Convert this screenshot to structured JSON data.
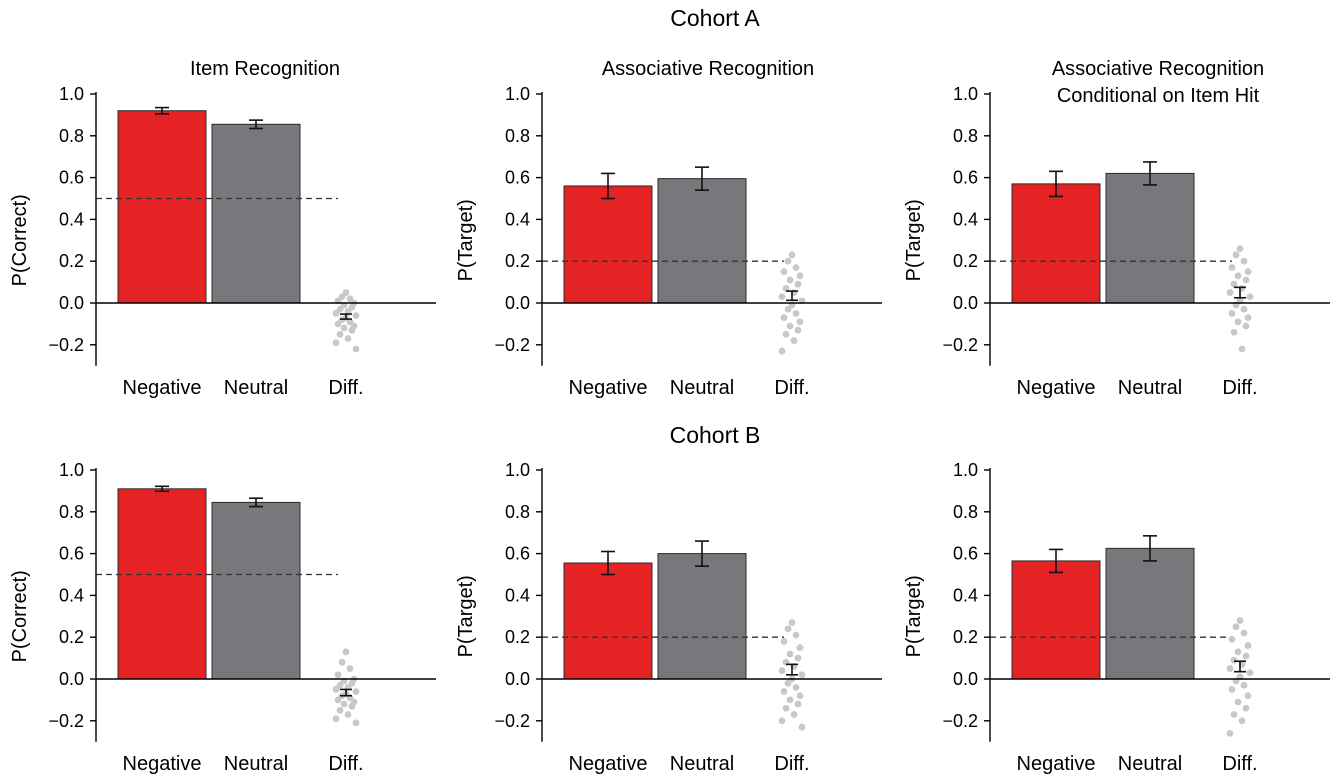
{
  "cohorts": [
    {
      "label": "Cohort A"
    },
    {
      "label": "Cohort B"
    }
  ],
  "colors": {
    "negative": "#e52325",
    "neutral": "#77787b",
    "dots": "#c8c8c8",
    "ref_line": "#333333"
  },
  "chart_data": [
    {
      "type": "bar",
      "cohort": "Cohort A",
      "title": "Item Recognition",
      "subtitle": "",
      "ylabel": "P(Correct)",
      "ylim": [
        -0.3,
        1.0
      ],
      "yticks": [
        "−0.2",
        "0.0",
        "0.2",
        "0.4",
        "0.6",
        "0.8",
        "1.0"
      ],
      "categories": [
        "Negative",
        "Neutral",
        "Diff."
      ],
      "values": [
        0.92,
        0.855,
        -0.065
      ],
      "errors": [
        0.015,
        0.02,
        0.012
      ],
      "chance": 0.5,
      "diff_points": [
        0.05,
        0.03,
        0.02,
        0.01,
        0.0,
        -0.01,
        -0.02,
        -0.03,
        -0.04,
        -0.05,
        -0.06,
        -0.07,
        -0.08,
        -0.09,
        -0.1,
        -0.11,
        -0.12,
        -0.13,
        -0.15,
        -0.17,
        -0.19,
        -0.22
      ]
    },
    {
      "type": "bar",
      "cohort": "Cohort A",
      "title": "Associative Recognition",
      "subtitle": "",
      "ylabel": "P(Target)",
      "ylim": [
        -0.3,
        1.0
      ],
      "yticks": [
        "−0.2",
        "0.0",
        "0.2",
        "0.4",
        "0.6",
        "0.8",
        "1.0"
      ],
      "categories": [
        "Negative",
        "Neutral",
        "Diff."
      ],
      "values": [
        0.56,
        0.595,
        0.035
      ],
      "errors": [
        0.06,
        0.055,
        0.022
      ],
      "chance": 0.2,
      "diff_points": [
        0.23,
        0.2,
        0.17,
        0.15,
        0.13,
        0.11,
        0.09,
        0.07,
        0.05,
        0.03,
        0.01,
        -0.01,
        -0.03,
        -0.05,
        -0.07,
        -0.09,
        -0.11,
        -0.13,
        -0.15,
        -0.18,
        -0.23
      ]
    },
    {
      "type": "bar",
      "cohort": "Cohort A",
      "title": "Associative Recognition",
      "subtitle": "Conditional on Item Hit",
      "ylabel": "P(Target)",
      "ylim": [
        -0.3,
        1.0
      ],
      "yticks": [
        "−0.2",
        "0.0",
        "0.2",
        "0.4",
        "0.6",
        "0.8",
        "1.0"
      ],
      "categories": [
        "Negative",
        "Neutral",
        "Diff."
      ],
      "values": [
        0.57,
        0.62,
        0.05
      ],
      "errors": [
        0.06,
        0.055,
        0.025
      ],
      "chance": 0.2,
      "diff_points": [
        0.26,
        0.23,
        0.2,
        0.17,
        0.15,
        0.13,
        0.11,
        0.09,
        0.07,
        0.05,
        0.03,
        0.01,
        -0.01,
        -0.03,
        -0.05,
        -0.07,
        -0.09,
        -0.11,
        -0.14,
        -0.22
      ]
    },
    {
      "type": "bar",
      "cohort": "Cohort B",
      "title": "",
      "subtitle": "",
      "ylabel": "P(Correct)",
      "ylim": [
        -0.3,
        1.0
      ],
      "yticks": [
        "−0.2",
        "0.0",
        "0.2",
        "0.4",
        "0.6",
        "0.8",
        "1.0"
      ],
      "categories": [
        "Negative",
        "Neutral",
        "Diff."
      ],
      "values": [
        0.91,
        0.845,
        -0.065
      ],
      "errors": [
        0.012,
        0.02,
        0.015
      ],
      "chance": 0.5,
      "diff_points": [
        0.13,
        0.08,
        0.05,
        0.02,
        0.0,
        -0.01,
        -0.02,
        -0.03,
        -0.04,
        -0.05,
        -0.06,
        -0.07,
        -0.08,
        -0.09,
        -0.1,
        -0.11,
        -0.12,
        -0.13,
        -0.15,
        -0.17,
        -0.19,
        -0.21
      ]
    },
    {
      "type": "bar",
      "cohort": "Cohort B",
      "title": "",
      "subtitle": "",
      "ylabel": "P(Target)",
      "ylim": [
        -0.3,
        1.0
      ],
      "yticks": [
        "−0.2",
        "0.0",
        "0.2",
        "0.4",
        "0.6",
        "0.8",
        "1.0"
      ],
      "categories": [
        "Negative",
        "Neutral",
        "Diff."
      ],
      "values": [
        0.555,
        0.6,
        0.045
      ],
      "errors": [
        0.055,
        0.06,
        0.025
      ],
      "chance": 0.2,
      "diff_points": [
        0.27,
        0.24,
        0.21,
        0.18,
        0.15,
        0.12,
        0.1,
        0.08,
        0.06,
        0.04,
        0.02,
        0.0,
        -0.02,
        -0.04,
        -0.06,
        -0.08,
        -0.1,
        -0.12,
        -0.14,
        -0.17,
        -0.2,
        -0.23
      ]
    },
    {
      "type": "bar",
      "cohort": "Cohort B",
      "title": "",
      "subtitle": "",
      "ylabel": "P(Target)",
      "ylim": [
        -0.3,
        1.0
      ],
      "yticks": [
        "−0.2",
        "0.0",
        "0.2",
        "0.4",
        "0.6",
        "0.8",
        "1.0"
      ],
      "categories": [
        "Negative",
        "Neutral",
        "Diff."
      ],
      "values": [
        0.565,
        0.625,
        0.06
      ],
      "errors": [
        0.055,
        0.06,
        0.025
      ],
      "chance": 0.2,
      "diff_points": [
        0.28,
        0.25,
        0.22,
        0.19,
        0.16,
        0.13,
        0.11,
        0.09,
        0.07,
        0.05,
        0.03,
        0.01,
        -0.01,
        -0.03,
        -0.05,
        -0.08,
        -0.11,
        -0.14,
        -0.17,
        -0.2,
        -0.26
      ]
    }
  ]
}
